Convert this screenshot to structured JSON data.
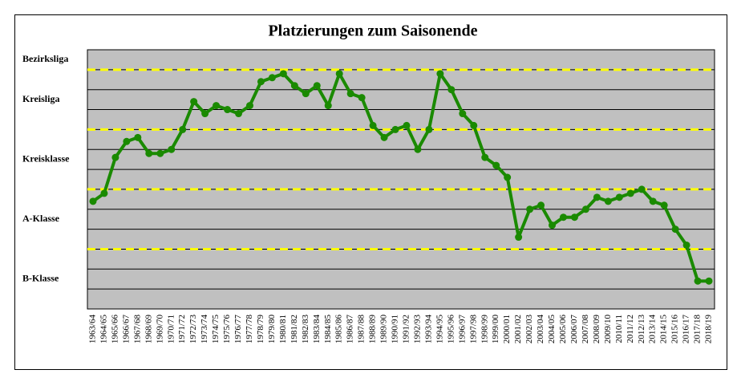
{
  "chart_data": {
    "type": "line",
    "title": "Platzierungen zum Saisonende",
    "categories": [
      "1963/64",
      "1964/65",
      "1965/66",
      "1966/67",
      "1967/68",
      "1968/69",
      "1969/70",
      "1970/71",
      "1971/72",
      "1972/73",
      "1973/74",
      "1974/75",
      "1975/76",
      "1976/77",
      "1977/78",
      "1978/79",
      "1979/80",
      "1980/81",
      "1981/82",
      "1982/83",
      "1983/84",
      "1984/85",
      "1985/86",
      "1986/87",
      "1987/88",
      "1988/89",
      "1989/90",
      "1990/91",
      "1991/92",
      "1992/93",
      "1993/94",
      "1994/95",
      "1995/96",
      "1996/97",
      "1997/98",
      "1998/99",
      "1999/00",
      "2000/01",
      "2001/02",
      "2002/03",
      "2003/04",
      "2004/05",
      "2005/06",
      "2006/07",
      "2007/08",
      "2008/09",
      "2009/10",
      "2010/11",
      "2011/12",
      "2012/13",
      "2013/14",
      "2014/15",
      "2015/16",
      "2016/17",
      "2017/18",
      "2018/19"
    ],
    "values": [
      5.4,
      5.8,
      7.6,
      8.4,
      8.6,
      7.8,
      7.8,
      8.0,
      9.0,
      10.4,
      9.8,
      10.2,
      10.0,
      9.8,
      10.2,
      11.4,
      11.6,
      11.8,
      11.2,
      10.8,
      11.2,
      10.2,
      11.8,
      10.8,
      10.6,
      9.2,
      8.6,
      9.0,
      9.2,
      8.0,
      9.0,
      11.8,
      11.0,
      9.8,
      9.2,
      7.6,
      7.2,
      6.6,
      3.6,
      5.0,
      5.2,
      4.2,
      4.6,
      4.6,
      5.0,
      5.6,
      5.4,
      5.6,
      5.8,
      6.0,
      5.4,
      5.2,
      4.0,
      3.2,
      1.4,
      1.4
    ],
    "color": "#1a8a00",
    "ylim": [
      0,
      13
    ],
    "yticks": [
      {
        "value": 1.5,
        "label": "B-Klasse"
      },
      {
        "value": 4.5,
        "label": "A-Klasse"
      },
      {
        "value": 7.5,
        "label": "Kreisklasse"
      },
      {
        "value": 10.5,
        "label": "Kreisliga"
      },
      {
        "value": 12.5,
        "label": "Bezirksliga"
      }
    ],
    "gridlines": [
      1,
      2,
      4,
      5,
      7,
      8,
      10,
      11
    ],
    "league_boundaries": [
      3,
      6,
      9,
      12
    ],
    "background": "#c0c0c0"
  }
}
